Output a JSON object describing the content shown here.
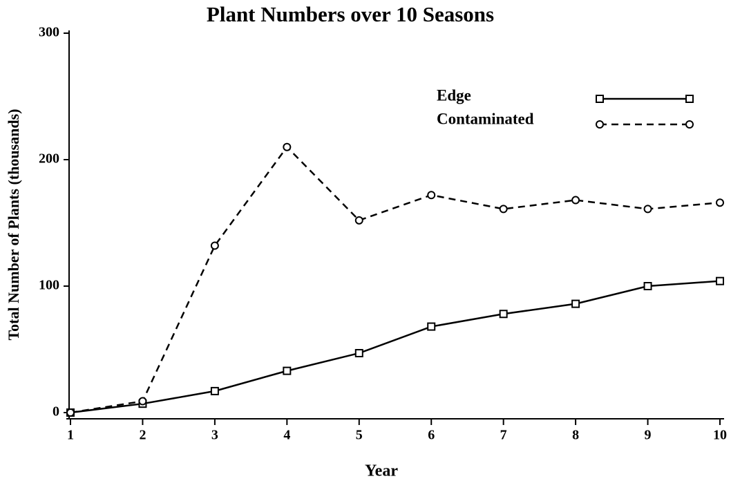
{
  "chart_data": {
    "type": "line",
    "title": "Plant Numbers over 10 Seasons",
    "xlabel": "Year",
    "ylabel": "Total Number of Plants (thousands)",
    "x": [
      1,
      2,
      3,
      4,
      5,
      6,
      7,
      8,
      9,
      10
    ],
    "series": [
      {
        "name": "Edge",
        "color": "#000000",
        "linestyle": "solid",
        "marker": "square",
        "values": [
          0,
          7,
          17,
          33,
          47,
          68,
          78,
          86,
          100,
          104
        ]
      },
      {
        "name": "Contaminated",
        "color": "#000000",
        "linestyle": "dashed",
        "marker": "circle",
        "values": [
          0,
          9,
          132,
          210,
          152,
          172,
          161,
          168,
          161,
          166
        ]
      }
    ],
    "xlim": [
      1,
      10
    ],
    "xticks": [
      1,
      2,
      3,
      4,
      5,
      6,
      7,
      8,
      9,
      10
    ],
    "ylim": [
      0,
      300
    ],
    "yticks": [
      0,
      100,
      200,
      300
    ],
    "grid": false,
    "legend": "upper right"
  }
}
